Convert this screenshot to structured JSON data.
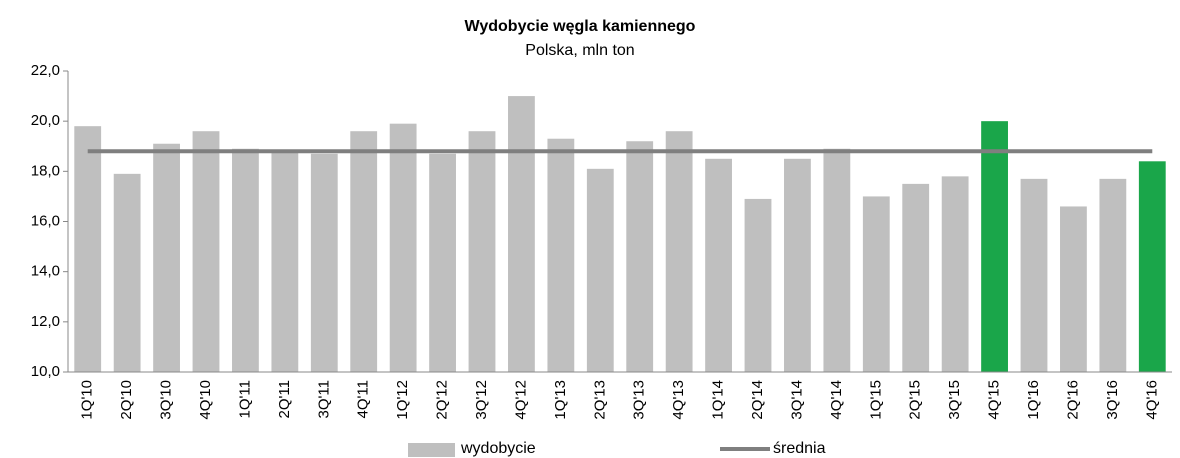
{
  "chart_data": {
    "type": "bar",
    "title": "Wydobycie węgla kamiennego",
    "subtitle": "Polska, mln ton",
    "categories": [
      "1Q'10",
      "2Q'10",
      "3Q'10",
      "4Q'10",
      "1Q'11",
      "2Q'11",
      "3Q'11",
      "4Q'11",
      "1Q'12",
      "2Q'12",
      "3Q'12",
      "4Q'12",
      "1Q'13",
      "2Q'13",
      "3Q'13",
      "4Q'13",
      "1Q'14",
      "2Q'14",
      "3Q'14",
      "4Q'14",
      "1Q'15",
      "2Q'15",
      "3Q'15",
      "4Q'15",
      "1Q'16",
      "2Q'16",
      "3Q'16",
      "4Q'16"
    ],
    "series": [
      {
        "name": "wydobycie",
        "type": "bar",
        "color": "#bfbfbf",
        "colors": [
          "#bfbfbf",
          "#bfbfbf",
          "#bfbfbf",
          "#bfbfbf",
          "#bfbfbf",
          "#bfbfbf",
          "#bfbfbf",
          "#bfbfbf",
          "#bfbfbf",
          "#bfbfbf",
          "#bfbfbf",
          "#bfbfbf",
          "#bfbfbf",
          "#bfbfbf",
          "#bfbfbf",
          "#bfbfbf",
          "#bfbfbf",
          "#bfbfbf",
          "#bfbfbf",
          "#bfbfbf",
          "#bfbfbf",
          "#bfbfbf",
          "#bfbfbf",
          "#1aa64a",
          "#bfbfbf",
          "#bfbfbf",
          "#bfbfbf",
          "#1aa64a"
        ],
        "values": [
          19.8,
          17.9,
          19.1,
          19.6,
          18.9,
          18.8,
          18.7,
          19.6,
          19.9,
          18.7,
          19.6,
          21.0,
          19.3,
          18.1,
          19.2,
          19.6,
          18.5,
          16.9,
          18.5,
          18.9,
          17.0,
          17.5,
          17.8,
          20.0,
          17.7,
          16.6,
          17.7,
          18.4
        ]
      },
      {
        "name": "średnia",
        "type": "line",
        "color": "#7f7f7f",
        "values": [
          18.8,
          18.8,
          18.8,
          18.8,
          18.8,
          18.8,
          18.8,
          18.8,
          18.8,
          18.8,
          18.8,
          18.8,
          18.8,
          18.8,
          18.8,
          18.8,
          18.8,
          18.8,
          18.8,
          18.8,
          18.8,
          18.8,
          18.8,
          18.8,
          18.8,
          18.8,
          18.8,
          18.8
        ]
      }
    ],
    "ylim": [
      10,
      22
    ],
    "yticks": [
      {
        "value": 10,
        "label": "10,0"
      },
      {
        "value": 12,
        "label": "12,0"
      },
      {
        "value": 14,
        "label": "14,0"
      },
      {
        "value": 16,
        "label": "16,0"
      },
      {
        "value": 18,
        "label": "18,0"
      },
      {
        "value": 20,
        "label": "20,0"
      },
      {
        "value": 22,
        "label": "22,0"
      }
    ],
    "grid": false,
    "legend": "bottom"
  }
}
